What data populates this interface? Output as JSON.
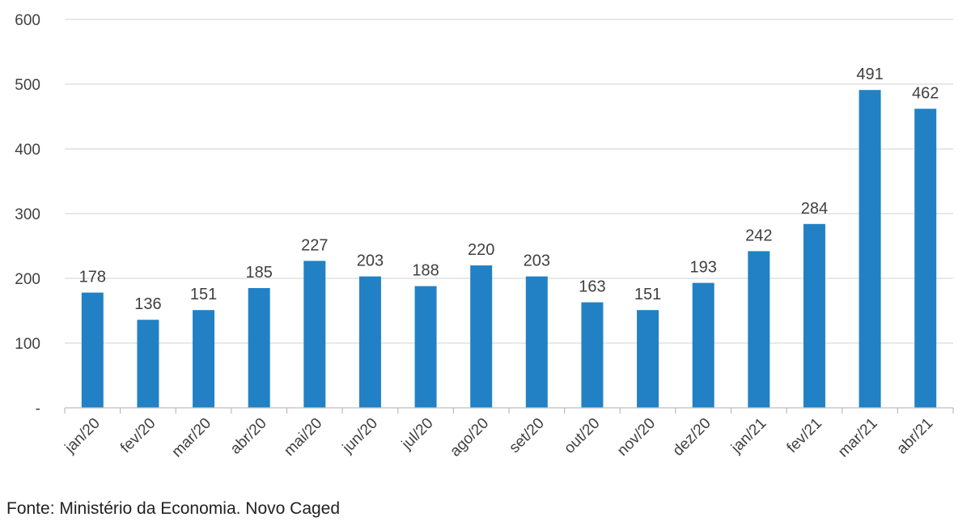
{
  "source_note": "Fonte: Ministério da Economia. Novo Caged",
  "colors": {
    "bar": "#2281c4",
    "grid": "#d9d9d9",
    "axis": "#bfbfbf",
    "text": "#404040"
  },
  "chart_data": {
    "type": "bar",
    "categories": [
      "jan/20",
      "fev/20",
      "mar/20",
      "abr/20",
      "mai/20",
      "jun/20",
      "jul/20",
      "ago/20",
      "set/20",
      "out/20",
      "nov/20",
      "dez/20",
      "jan/21",
      "fev/21",
      "mar/21",
      "abr/21"
    ],
    "values": [
      178,
      136,
      151,
      185,
      227,
      203,
      188,
      220,
      203,
      163,
      151,
      193,
      242,
      284,
      491,
      462
    ],
    "data_labels": [
      "178",
      "136",
      "151",
      "185",
      "227",
      "203",
      "188",
      "220",
      "203",
      "163",
      "151",
      "193",
      "242",
      "284",
      "491",
      "462"
    ],
    "title": "",
    "xlabel": "",
    "ylabel": "",
    "ylim": [
      0,
      600
    ],
    "yticks": [
      0,
      100,
      200,
      300,
      400,
      500,
      600
    ],
    "ytick_labels": [
      "-",
      "100",
      "200",
      "300",
      "400",
      "500",
      "600"
    ],
    "grid": true,
    "legend": "none"
  }
}
